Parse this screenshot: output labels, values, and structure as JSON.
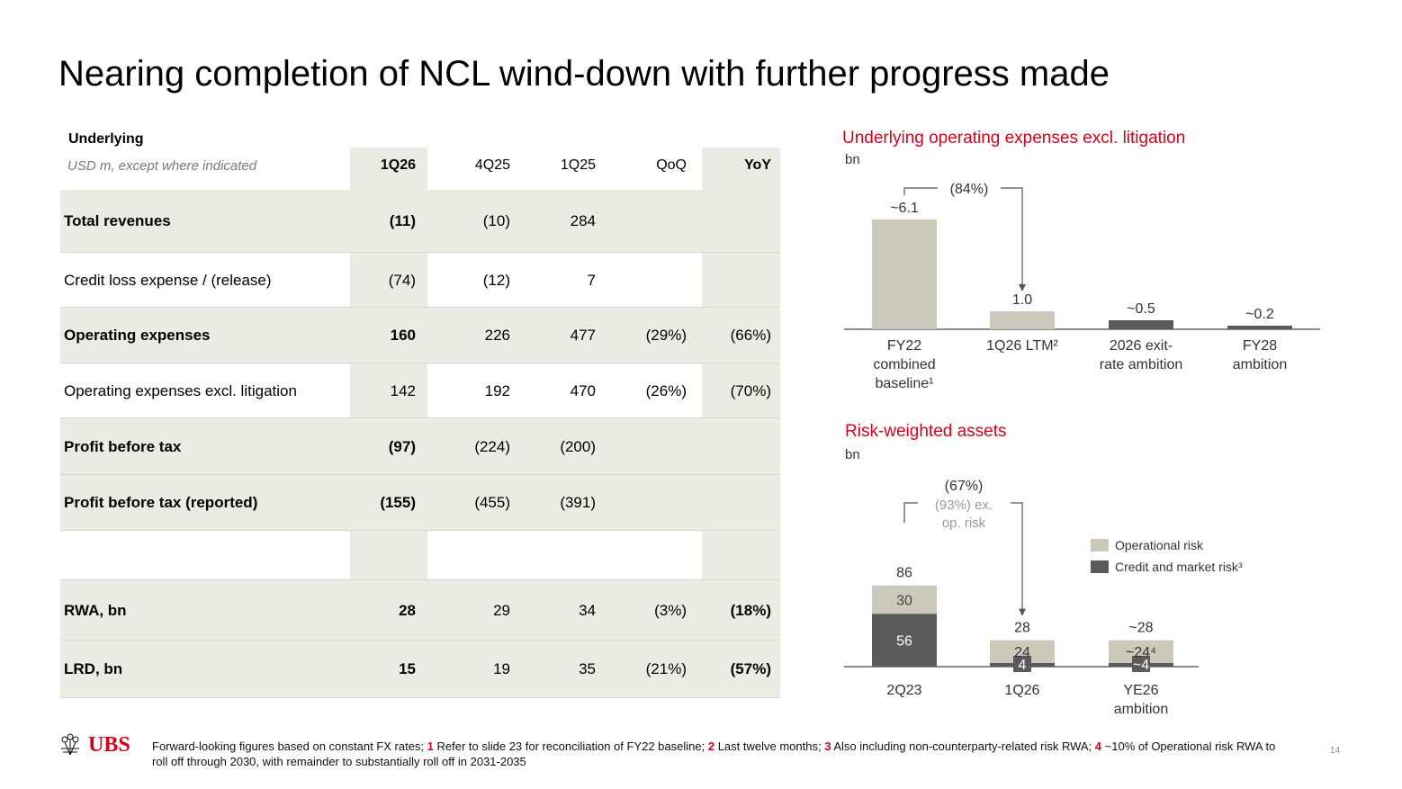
{
  "title": "Nearing completion of NCL wind-down with further progress made",
  "table": {
    "heading": "Underlying",
    "subheading": "USD m, except where indicated",
    "columns": [
      "1Q26",
      "4Q25",
      "1Q25",
      "QoQ",
      "YoY"
    ],
    "rows": [
      {
        "label": "Total revenues",
        "bold": true,
        "values": [
          "(11)",
          "(10)",
          "284",
          "",
          ""
        ]
      },
      {
        "label": "Credit loss expense / (release)",
        "bold": false,
        "values": [
          "(74)",
          "(12)",
          "7",
          "",
          ""
        ]
      },
      {
        "label": "Operating expenses",
        "bold": true,
        "values": [
          "160",
          "226",
          "477",
          "(29%)",
          "(66%)"
        ]
      },
      {
        "label": "Operating expenses excl. litigation",
        "bold": false,
        "values": [
          "142",
          "192",
          "470",
          "(26%)",
          "(70%)"
        ]
      },
      {
        "label": "Profit before tax",
        "bold": true,
        "values": [
          "(97)",
          "(224)",
          "(200)",
          "",
          ""
        ]
      },
      {
        "label": "Profit before tax (reported)",
        "bold": true,
        "values": [
          "(155)",
          "(455)",
          "(391)",
          "",
          ""
        ]
      },
      {
        "label": "",
        "bold": false,
        "values": [
          "",
          "",
          "",
          "",
          ""
        ]
      },
      {
        "label": "RWA, bn",
        "bold": true,
        "values": [
          "28",
          "29",
          "34",
          "(3%)",
          "(18%)"
        ]
      },
      {
        "label": "LRD, bn",
        "bold": true,
        "values": [
          "15",
          "19",
          "35",
          "(21%)",
          "(57%)"
        ]
      }
    ]
  },
  "chart_data": [
    {
      "type": "bar",
      "title": "Underlying operating expenses excl. litigation",
      "unit": "bn",
      "categories": [
        [
          "FY22",
          "combined",
          "baseline¹"
        ],
        [
          "1Q26 LTM²"
        ],
        [
          "2026 exit-",
          "rate ambition"
        ],
        [
          "FY28",
          "ambition"
        ]
      ],
      "values": [
        6.1,
        1.0,
        0.5,
        0.2
      ],
      "value_labels": [
        "~6.1",
        "1.0",
        "~0.5",
        "~0.2"
      ],
      "bar_colors": [
        "#ccc9bb",
        "#ccc9bb",
        "#5a5a5a",
        "#5a5a5a"
      ],
      "annotation": "(84%)"
    },
    {
      "type": "bar",
      "stacked": true,
      "title": "Risk-weighted assets",
      "unit": "bn",
      "categories": [
        [
          "2Q23"
        ],
        [
          "1Q26"
        ],
        [
          "YE26",
          "ambition"
        ]
      ],
      "series": [
        {
          "name": "Credit and market risk³",
          "color": "#5a5a5a",
          "values": [
            56,
            4,
            4
          ],
          "labels": [
            "56",
            "4",
            "~4"
          ]
        },
        {
          "name": "Operational risk",
          "color": "#ccc9bb",
          "values": [
            30,
            24,
            24
          ],
          "labels": [
            "30",
            "24",
            "~24⁴"
          ]
        }
      ],
      "totals": [
        "86",
        "28",
        "~28"
      ],
      "annotation": [
        "(67%)",
        "(93%) ex.",
        "op. risk"
      ]
    }
  ],
  "footnote": {
    "text0": "Forward-looking figures based on constant FX rates; ",
    "n1": "1",
    "text1": " Refer to slide 23 for reconciliation of FY22 baseline; ",
    "n2": "2",
    "text2": " Last twelve months; ",
    "n3": "3",
    "text3": " Also including non-counterparty-related risk RWA; ",
    "n4": "4",
    "text4": " ~10% of Operational risk RWA to roll off through 2030, with remainder to substantially roll off in 2031-2035"
  },
  "logo": {
    "text": "UBS"
  },
  "page_number": "14",
  "colors": {
    "accent": "#d8001c",
    "shade": "#ebebe4",
    "light_bar": "#ccc9bb",
    "dark_bar": "#5a5a5a"
  }
}
